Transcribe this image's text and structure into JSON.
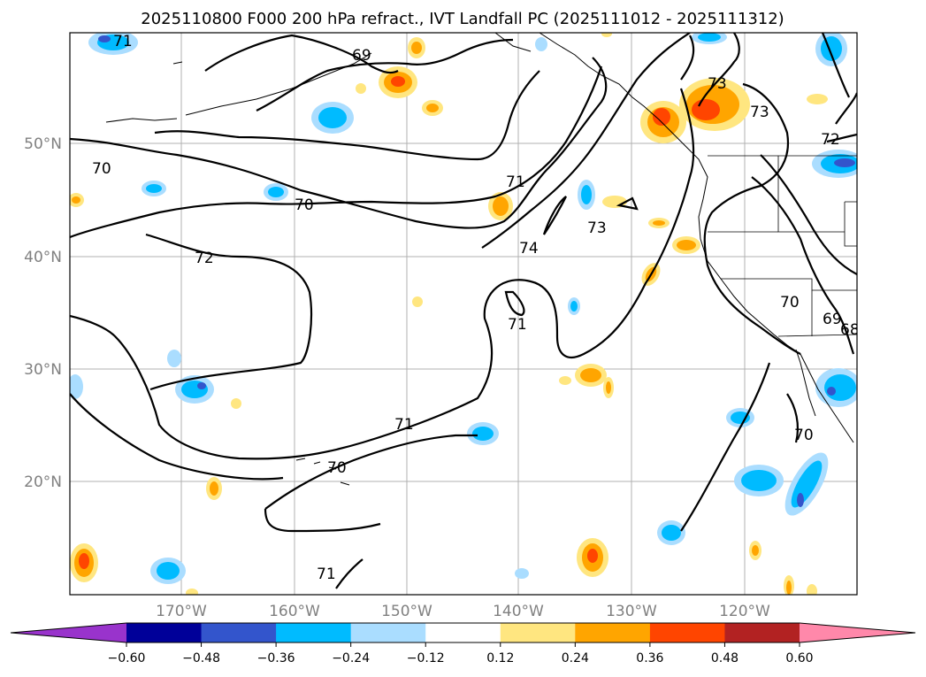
{
  "title": "2025110800 F000 200 hPa refract., IVT Landfall PC (2025111012 - 2025111312)",
  "lat_labels": [
    "50°N",
    "40°N",
    "30°N",
    "20°N"
  ],
  "lon_labels": [
    "170°W",
    "160°W",
    "150°W",
    "140°W",
    "130°W",
    "120°W"
  ],
  "colorbar": {
    "ticks": [
      "−0.60",
      "−0.48",
      "−0.36",
      "−0.24",
      "−0.12",
      "0.12",
      "0.24",
      "0.36",
      "0.48",
      "0.60"
    ],
    "colors": [
      "#9933cc",
      "#000099",
      "#3355cc",
      "#00bbff",
      "#aaddff",
      "#ffffff",
      "#ffe680",
      "#ffa500",
      "#ff4500",
      "#b22222",
      "#ff88aa"
    ]
  },
  "contour_labels": [
    {
      "text": "71"
    },
    {
      "text": "69"
    },
    {
      "text": "70"
    },
    {
      "text": "70"
    },
    {
      "text": "72"
    },
    {
      "text": "71"
    },
    {
      "text": "74"
    },
    {
      "text": "73"
    },
    {
      "text": "71"
    },
    {
      "text": "73"
    },
    {
      "text": "73"
    },
    {
      "text": "72"
    },
    {
      "text": "70"
    },
    {
      "text": "69"
    },
    {
      "text": "68"
    },
    {
      "text": "71"
    },
    {
      "text": "70"
    },
    {
      "text": "70"
    },
    {
      "text": "71"
    }
  ]
}
